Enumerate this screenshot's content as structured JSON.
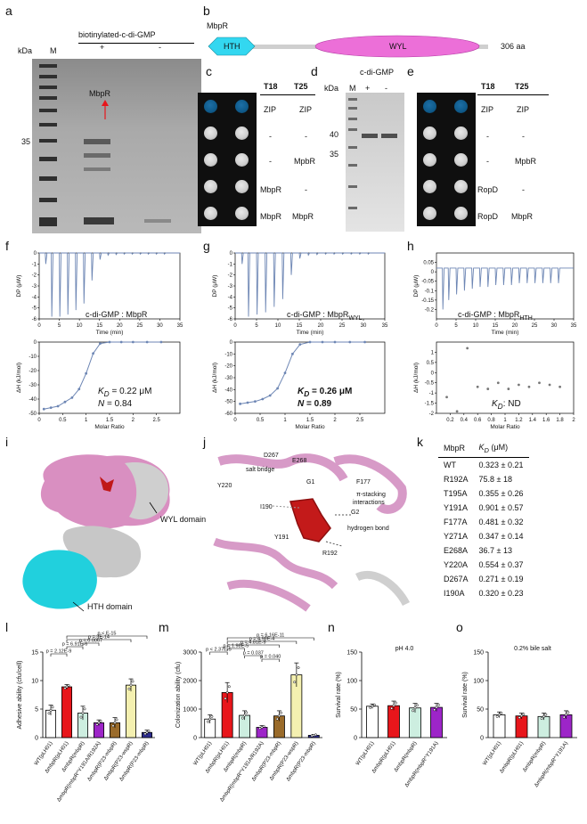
{
  "panels": {
    "a": "a",
    "b": "b",
    "c": "c",
    "d": "d",
    "e": "e",
    "f": "f",
    "g": "g",
    "h": "h",
    "i": "i",
    "j": "j",
    "k": "k",
    "l": "l",
    "m": "m",
    "n": "n",
    "o": "o"
  },
  "panel_a": {
    "kda": "kDa",
    "marker": "M",
    "title": "biotinylated-c-di-GMP",
    "plus": "+",
    "minus": "-",
    "band_label": "MbpR",
    "mw_35": "35"
  },
  "panel_b": {
    "protein": "MbpR",
    "domain1": "HTH",
    "domain2": "WYL",
    "length": "306 aa"
  },
  "panel_c": {
    "col1": "T18",
    "col2": "T25",
    "rows": [
      {
        "t18": "ZIP",
        "t25": "ZIP"
      },
      {
        "t18": "-",
        "t25": "-"
      },
      {
        "t18": "-",
        "t25": "MpbR"
      },
      {
        "t18": "MbpR",
        "t25": "-"
      },
      {
        "t18": "MbpR",
        "t25": "MbpR"
      }
    ]
  },
  "panel_d": {
    "title": "c-di-GMP",
    "kda": "kDa",
    "marker": "M",
    "plus": "+",
    "minus": "-",
    "mw_40": "40",
    "mw_35": "35"
  },
  "panel_e": {
    "col1": "T18",
    "col2": "T25",
    "rows": [
      {
        "t18": "ZIP",
        "t25": "ZIP"
      },
      {
        "t18": "-",
        "t25": "-"
      },
      {
        "t18": "-",
        "t25": "MpbR"
      },
      {
        "t18": "RopD",
        "t25": "-"
      },
      {
        "t18": "RopD",
        "t25": "MbpR"
      }
    ]
  },
  "itc": {
    "dp_ylabel": "DP (μW)",
    "time_xlabel": "Time (min)",
    "dh_ylabel": "ΔH (kJ/mol)",
    "ratio_xlabel": "Molar Ratio",
    "f_title": "c-di-GMP : MbpR",
    "f_kd": "= 0.22 μM",
    "f_n": "= 0.84",
    "g_title": "c-di-GMP : MbpR",
    "g_title_sub": "WYL",
    "g_kd": "= 0.26 μM",
    "g_n": "= 0.89",
    "h_title": "c-di-GMP : MbpR",
    "h_title_sub": "HTH",
    "h_kd": ": ND",
    "kd_sym": "K",
    "kd_sub": "D",
    "n_sym": "N"
  },
  "panel_i": {
    "wyl": "WYL domain",
    "hth": "HTH domain"
  },
  "panel_j": {
    "d267": "D267",
    "e268": "E268",
    "salt": "salt bridge",
    "y220": "Y220",
    "g1": "G1",
    "f177": "F177",
    "pi": "π-stacking",
    "pi2": "interactions",
    "i190": "I190",
    "g2": "G2",
    "hbond": "hydrogen bond",
    "y191": "Y191",
    "r192": "R192"
  },
  "panel_k": {
    "col1": "MbpR",
    "col2_k": "K",
    "col2_sub": "D",
    "col2_unit": " (μM)",
    "rows": [
      {
        "name": "WT",
        "kd": "0.323 ± 0.21"
      },
      {
        "name": "R192A",
        "kd": "75.8  ± 18"
      },
      {
        "name": "T195A",
        "kd": "0.355 ± 0.26"
      },
      {
        "name": "Y191A",
        "kd": "0.901 ± 0.57"
      },
      {
        "name": "F177A",
        "kd": "0.481 ± 0.32"
      },
      {
        "name": "Y271A",
        "kd": "0.347 ± 0.14"
      },
      {
        "name": "E268A",
        "kd": "36.7  ± 13"
      },
      {
        "name": "Y220A",
        "kd": "0.554 ± 0.37"
      },
      {
        "name": "D267A",
        "kd": "0.271 ± 0.19"
      },
      {
        "name": "I190A",
        "kd": "0.320 ± 0.23"
      }
    ]
  },
  "chart_data": [
    {
      "type": "bar",
      "id": "l",
      "ylabel": "Adhesive ability (cfu/cell)",
      "ylim": [
        0,
        15
      ],
      "yticks": [
        0,
        5,
        10,
        15
      ],
      "categories": [
        "WT(pLH01)",
        "ΔmbpR(pLH01)",
        "ΔmbpR(mbpR)",
        "ΔmbpR(mbpR^Y191A/R192A)",
        "ΔmbpR(P23-mbpR)",
        "ΔmbpR(P23-wspR)",
        "ΔmbpR(P23-mbpR)"
      ],
      "values": [
        4.8,
        8.9,
        4.3,
        2.6,
        2.6,
        9.2,
        0.9
      ],
      "errors": [
        0.9,
        0.4,
        1.2,
        0.5,
        0.9,
        1.1,
        0.4
      ],
      "colors": [
        "#ffffff",
        "#e8161b",
        "#cdeee0",
        "#9d25c8",
        "#9a6b2a",
        "#f4f0b0",
        "#2d2c8e"
      ],
      "pvalues": [
        "p = 2.12E-9",
        "p = 6.91E-6",
        "p = 0.0067",
        "p = 3E-14",
        "p < E-15"
      ]
    },
    {
      "type": "bar",
      "id": "m",
      "ylabel": "Colonization ability (cfu)",
      "ylim": [
        0,
        3000
      ],
      "yticks": [
        0,
        1000,
        2000,
        3000
      ],
      "categories": [
        "WT(pLH01)",
        "ΔmbpR(pLH01)",
        "ΔmbpR(mbpR)",
        "ΔmbpR(mbpR^Y191A/R192A)",
        "ΔmbpR(P23-mbpR)",
        "ΔmbpR(P23-wspR)",
        "ΔmbpR(P23-mbpR)"
      ],
      "values": [
        650,
        1580,
        780,
        360,
        760,
        2200,
        80
      ],
      "errors": [
        150,
        350,
        160,
        60,
        180,
        420,
        30
      ],
      "colors": [
        "#ffffff",
        "#e8161b",
        "#cdeee0",
        "#9d25c8",
        "#9a6b2a",
        "#f4f0b0",
        "#2d2c8e"
      ],
      "pvalues": [
        "p < 2.37E-5",
        "p = 1.98E-5",
        "p = 0.037",
        "p = 0.040",
        "p = 4.81E-9",
        "p = 4.98E-4",
        "p = 6.16E-11"
      ]
    },
    {
      "type": "bar",
      "id": "n",
      "title": "pH 4.0",
      "ylabel": "Survival rate (%)",
      "ylim": [
        0,
        150
      ],
      "yticks": [
        0,
        50,
        100,
        150
      ],
      "categories": [
        "WT(pLH01)",
        "ΔmbpR(pLH01)",
        "ΔmbpR(mbpR)",
        "ΔmbpR(mbpR^Y191A)"
      ],
      "values": [
        55,
        56,
        52,
        53
      ],
      "errors": [
        4,
        8,
        8,
        7
      ],
      "colors": [
        "#ffffff",
        "#e8161b",
        "#cdeee0",
        "#9d25c8"
      ]
    },
    {
      "type": "bar",
      "id": "o",
      "title": "0.2% bile salt",
      "ylabel": "Survival rate (%)",
      "ylim": [
        0,
        150
      ],
      "yticks": [
        0,
        50,
        100,
        150
      ],
      "categories": [
        "WT(pLH01)",
        "ΔmbpR(pLH01)",
        "ΔmbpR(mbpR)",
        "ΔmbpR(mbpR^Y191A)"
      ],
      "values": [
        40,
        38,
        37,
        40
      ],
      "errors": [
        5,
        5,
        6,
        7
      ],
      "colors": [
        "#ffffff",
        "#e8161b",
        "#cdeee0",
        "#9d25c8"
      ]
    },
    {
      "type": "line",
      "id": "itc-f-raw",
      "xlim": [
        0,
        35
      ],
      "xticks": [
        0,
        5,
        10,
        15,
        20,
        25,
        30,
        35
      ],
      "ylim": [
        -6,
        0
      ],
      "yticks": [
        0,
        -1,
        -2,
        -3,
        -4,
        -5,
        -6
      ],
      "injection_times": [
        1.5,
        3,
        5,
        7,
        9,
        11,
        13,
        15,
        17,
        19,
        21,
        23,
        25,
        27,
        29,
        31
      ],
      "injection_depths": [
        -1,
        -5.8,
        -5.8,
        -5.6,
        -5.2,
        -4.6,
        -2.5,
        -0.6,
        -0.2,
        -0.15,
        -0.1,
        -0.1,
        -0.1,
        -0.1,
        -0.1,
        -0.1
      ]
    },
    {
      "type": "line",
      "id": "itc-f-fit",
      "xlim": [
        0,
        3
      ],
      "xticks": [
        0,
        0.5,
        1,
        1.5,
        2,
        2.5
      ],
      "ylim": [
        -50,
        0
      ],
      "yticks": [
        0,
        -10,
        -20,
        -30,
        -40,
        -50
      ],
      "x": [
        0.1,
        0.25,
        0.4,
        0.55,
        0.7,
        0.85,
        1.0,
        1.15,
        1.3,
        1.5,
        1.75,
        2.0,
        2.3,
        2.6
      ],
      "y": [
        -47,
        -46,
        -45,
        -42,
        -39,
        -33,
        -22,
        -8,
        -1,
        0,
        0,
        0,
        0,
        0
      ]
    },
    {
      "type": "line",
      "id": "itc-g-raw",
      "xlim": [
        0,
        35
      ],
      "xticks": [
        0,
        5,
        10,
        15,
        20,
        25,
        30,
        35
      ],
      "ylim": [
        -6,
        0
      ],
      "yticks": [
        0,
        -1,
        -2,
        -3,
        -4,
        -5,
        -6
      ],
      "injection_times": [
        1.5,
        3,
        5,
        7,
        9,
        11,
        13,
        15,
        17,
        19,
        21,
        23,
        25,
        27,
        29,
        31
      ],
      "injection_depths": [
        -1,
        -5.8,
        -5.6,
        -5.4,
        -4.9,
        -4.2,
        -2,
        -0.5,
        -0.2,
        -0.15,
        -0.1,
        -0.1,
        -0.1,
        -0.1,
        -0.1,
        -0.1
      ]
    },
    {
      "type": "line",
      "id": "itc-g-fit",
      "xlim": [
        0,
        3
      ],
      "xticks": [
        0,
        0.5,
        1,
        1.5,
        2,
        2.5
      ],
      "ylim": [
        -60,
        0
      ],
      "yticks": [
        0,
        -10,
        -20,
        -30,
        -40,
        -50,
        -60
      ],
      "x": [
        0.1,
        0.25,
        0.4,
        0.55,
        0.7,
        0.85,
        1.0,
        1.15,
        1.3,
        1.5,
        1.75,
        2.0,
        2.3,
        2.6
      ],
      "y": [
        -52,
        -51,
        -50,
        -48,
        -45,
        -39,
        -26,
        -10,
        -2,
        0,
        0,
        0,
        0,
        0
      ]
    },
    {
      "type": "line",
      "id": "itc-h-raw",
      "xlim": [
        0,
        35
      ],
      "xticks": [
        0,
        5,
        10,
        15,
        20,
        25,
        30,
        35
      ],
      "ylim": [
        -0.25,
        0.1
      ],
      "yticks": [
        0.05,
        0,
        -0.05,
        -0.1,
        -0.15,
        -0.2
      ],
      "injection_times": [
        1.5,
        3,
        5,
        7,
        9,
        11,
        13,
        15,
        17,
        19,
        21,
        23,
        25,
        27,
        29,
        31
      ],
      "injection_depths": [
        -0.2,
        -0.15,
        -0.12,
        -0.1,
        -0.09,
        -0.08,
        -0.08,
        -0.07,
        -0.07,
        -0.07,
        -0.06,
        -0.06,
        -0.06,
        -0.06,
        -0.06,
        -0.06
      ]
    },
    {
      "type": "scatter",
      "id": "itc-h-fit",
      "xlim": [
        0,
        2
      ],
      "xticks": [
        0.2,
        0.4,
        0.6,
        0.8,
        1,
        1.2,
        1.4,
        1.6,
        1.8,
        2
      ],
      "ylim": [
        -2,
        1.5
      ],
      "yticks": [
        1,
        0.5,
        0,
        -0.5,
        -1,
        -1.5,
        -2
      ],
      "x": [
        0.15,
        0.3,
        0.45,
        0.6,
        0.75,
        0.9,
        1.05,
        1.2,
        1.35,
        1.5,
        1.65,
        1.8
      ],
      "y": [
        -1.2,
        -1.9,
        1.2,
        -0.7,
        -0.8,
        -0.5,
        -0.8,
        -0.6,
        -0.7,
        -0.5,
        -0.6,
        -0.7
      ]
    }
  ]
}
